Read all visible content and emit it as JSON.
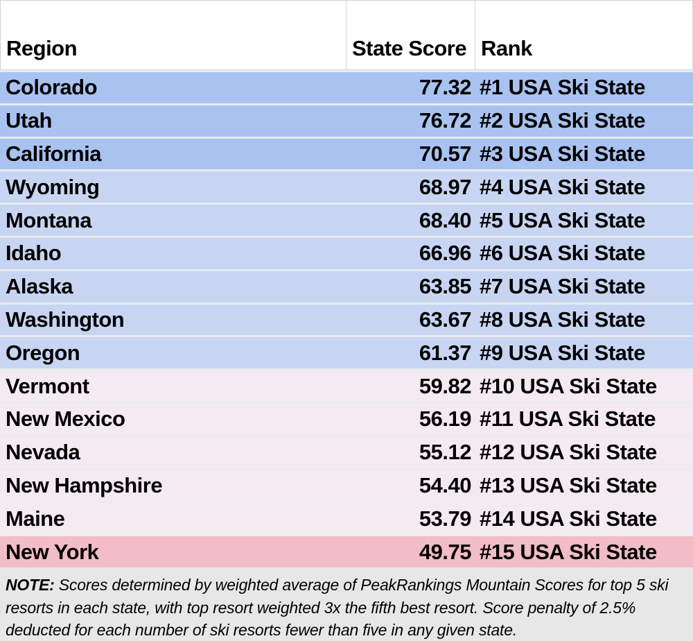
{
  "chart_data": {
    "type": "table",
    "columns": [
      "Region",
      "State Score",
      "Rank"
    ],
    "rows": [
      {
        "region": "Colorado",
        "score": "77.32",
        "rank": "#1 USA Ski State",
        "tier": "blue_strong"
      },
      {
        "region": "Utah",
        "score": "76.72",
        "rank": "#2 USA Ski State",
        "tier": "blue_strong"
      },
      {
        "region": "California",
        "score": "70.57",
        "rank": "#3 USA Ski State",
        "tier": "blue_strong"
      },
      {
        "region": "Wyoming",
        "score": "68.97",
        "rank": "#4 USA Ski State",
        "tier": "blue_light"
      },
      {
        "region": "Montana",
        "score": "68.40",
        "rank": "#5 USA Ski State",
        "tier": "blue_light"
      },
      {
        "region": "Idaho",
        "score": "66.96",
        "rank": "#6 USA Ski State",
        "tier": "blue_light"
      },
      {
        "region": "Alaska",
        "score": "63.85",
        "rank": "#7 USA Ski State",
        "tier": "blue_light"
      },
      {
        "region": "Washington",
        "score": "63.67",
        "rank": "#8 USA Ski State",
        "tier": "blue_light"
      },
      {
        "region": "Oregon",
        "score": "61.37",
        "rank": "#9 USA Ski State",
        "tier": "blue_light"
      },
      {
        "region": "Vermont",
        "score": "59.82",
        "rank": "#10 USA Ski State",
        "tier": "pink_light"
      },
      {
        "region": "New Mexico",
        "score": "56.19",
        "rank": "#11 USA Ski State",
        "tier": "pink_light"
      },
      {
        "region": "Nevada",
        "score": "55.12",
        "rank": "#12 USA Ski State",
        "tier": "pink_light"
      },
      {
        "region": "New Hampshire",
        "score": "54.40",
        "rank": "#13 USA Ski State",
        "tier": "pink_light"
      },
      {
        "region": "Maine",
        "score": "53.79",
        "rank": "#14 USA Ski State",
        "tier": "pink_light"
      },
      {
        "region": "New York",
        "score": "49.75",
        "rank": "#15 USA Ski State",
        "tier": "pink_strong"
      }
    ],
    "note": "NOTE: Scores determined by weighted average of PeakRankings Mountain Scores for top 5 ski resorts in each state, with top resort weighted 3x the fifth best resort. Score penalty of 2.5% deducted for each number of ski resorts fewer than five in any given state."
  },
  "header": {
    "region": "Region",
    "score": "State Score",
    "rank": "Rank"
  },
  "note": {
    "label": "NOTE:",
    "text": "Scores determined by weighted average of PeakRankings Mountain Scores for top 5 ski resorts in each state, with top resort weighted 3x the fifth best resort. Score penalty of 2.5% deducted for each number of ski resorts fewer than five in any given state."
  },
  "colors": {
    "blue_strong": "#A9C3F1",
    "blue_light": "#C8D5F2",
    "pink_light": "#F4EAF1",
    "pink_strong": "#F2BDC6",
    "note_bg": "#E7E7E7",
    "separator": "#E9ECF0",
    "header_border": "#D3D3D3",
    "text": "#000000"
  }
}
